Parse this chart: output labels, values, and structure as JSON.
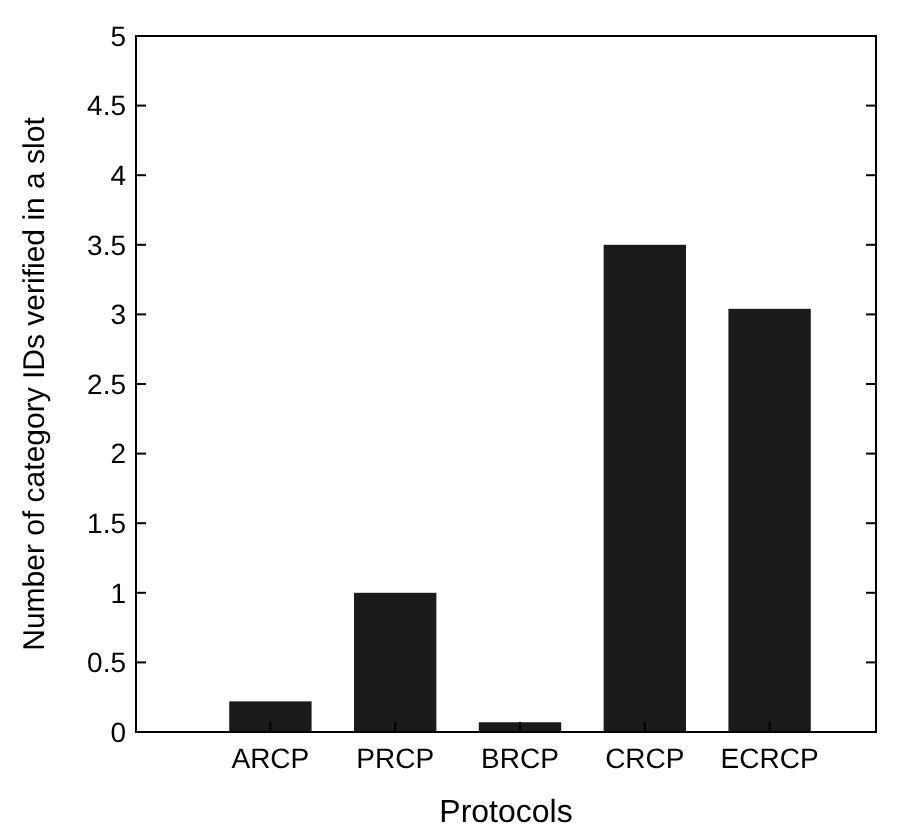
{
  "chart_data": {
    "type": "bar",
    "xlabel": "Protocols",
    "ylabel": "Number of category IDs verified in a slot",
    "categories": [
      "ARCP",
      "PRCP",
      "BRCP",
      "CRCP",
      "ECRCP"
    ],
    "values": [
      0.22,
      1.0,
      0.07,
      3.5,
      3.04
    ],
    "color": "#1a1a1a",
    "ylim": [
      0,
      5
    ],
    "yticks": [
      0,
      0.5,
      1,
      1.5,
      2,
      2.5,
      3,
      3.5,
      4,
      4.5,
      5
    ],
    "grid": false
  }
}
